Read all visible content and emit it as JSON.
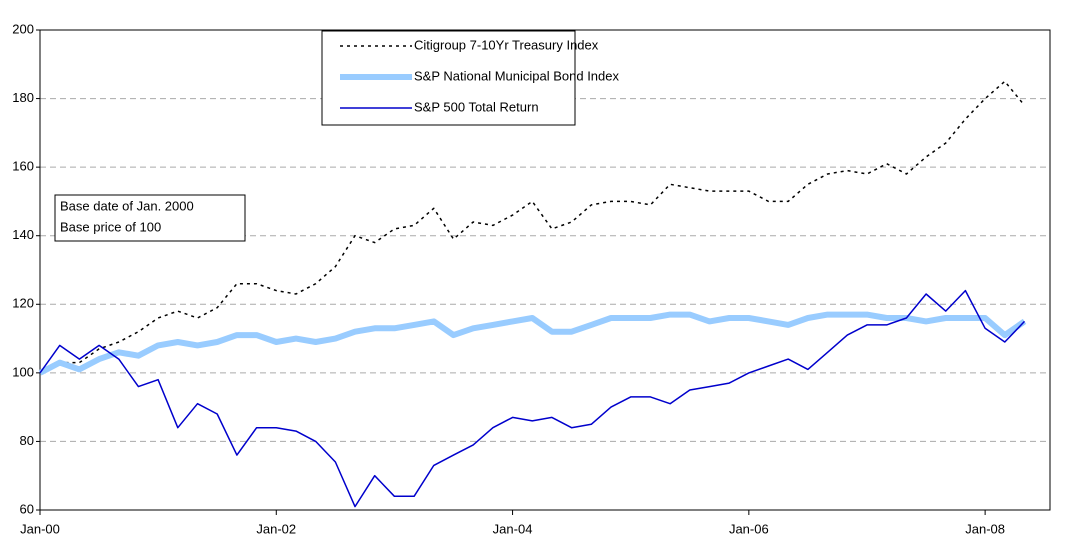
{
  "chart_data": {
    "type": "line",
    "categories": [
      "Jan-00",
      null,
      null,
      null,
      null,
      null,
      null,
      null,
      null,
      null,
      null,
      null,
      "Jan-02",
      null,
      null,
      null,
      null,
      null,
      null,
      null,
      null,
      null,
      null,
      null,
      "Jan-04",
      null,
      null,
      null,
      null,
      null,
      null,
      null,
      null,
      null,
      null,
      null,
      "Jan-06",
      null,
      null,
      null,
      null,
      null,
      null,
      null,
      null,
      null,
      null,
      null,
      "Jan-08",
      null,
      null
    ],
    "ylim": [
      60,
      200
    ],
    "yticks": [
      60,
      80,
      100,
      120,
      140,
      160,
      180,
      200
    ],
    "grid": true,
    "legend": "top",
    "annotations": [
      "Base date of Jan. 2000",
      "Base price of 100"
    ],
    "series": [
      {
        "name": "Citigroup 7-10Yr Treasury Index",
        "color": "#000000",
        "line_style": "dotted",
        "values": [
          100,
          103,
          103,
          107,
          109,
          112,
          116,
          118,
          116,
          119,
          126,
          126,
          124,
          123,
          126,
          131,
          140,
          138,
          142,
          143,
          148,
          139,
          144,
          143,
          146,
          150,
          142,
          144,
          149,
          150,
          150,
          149,
          155,
          154,
          153,
          153,
          153,
          150,
          150,
          155,
          158,
          159,
          158,
          161,
          158,
          163,
          167,
          174,
          180,
          185,
          178
        ]
      },
      {
        "name": "S&P National Municipal Bond Index",
        "color": "#99ccff",
        "line_style": "thick",
        "values": [
          100,
          103,
          101,
          104,
          106,
          105,
          108,
          109,
          108,
          109,
          111,
          111,
          109,
          110,
          109,
          110,
          112,
          113,
          113,
          114,
          115,
          111,
          113,
          114,
          115,
          116,
          112,
          112,
          114,
          116,
          116,
          116,
          117,
          117,
          115,
          116,
          116,
          115,
          114,
          116,
          117,
          117,
          117,
          116,
          116,
          115,
          116,
          116,
          116,
          111,
          115
        ]
      },
      {
        "name": "S&P 500 Total Return",
        "color": "#0000cc",
        "line_style": "solid",
        "values": [
          100,
          108,
          104,
          108,
          104,
          96,
          98,
          84,
          91,
          88,
          76,
          84,
          84,
          83,
          80,
          74,
          61,
          70,
          64,
          64,
          73,
          76,
          79,
          84,
          87,
          86,
          87,
          84,
          85,
          90,
          93,
          93,
          91,
          95,
          96,
          97,
          100,
          102,
          104,
          101,
          106,
          111,
          114,
          114,
          116,
          123,
          118,
          124,
          113,
          109,
          115
        ]
      }
    ]
  }
}
